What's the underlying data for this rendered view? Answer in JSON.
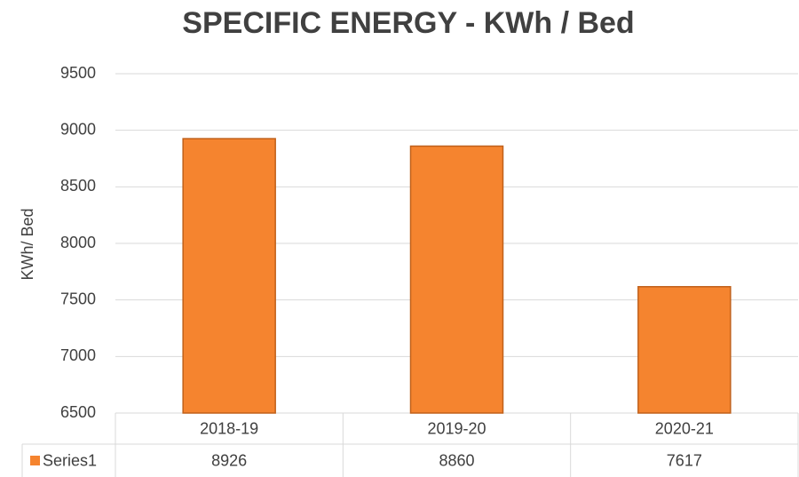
{
  "chart_data": {
    "type": "bar",
    "title": "SPECIFIC ENERGY - KWh / Bed",
    "y_label": "KWh/ Bed",
    "categories": [
      "2018-19",
      "2019-20",
      "2020-21"
    ],
    "series": [
      {
        "name": "Series1",
        "color": "#f5842f",
        "values": [
          8926,
          8860,
          7617
        ]
      }
    ],
    "ylim": [
      6500,
      9500
    ],
    "yticks": [
      6500,
      7000,
      7500,
      8000,
      8500,
      9000,
      9500
    ],
    "grid": true
  }
}
